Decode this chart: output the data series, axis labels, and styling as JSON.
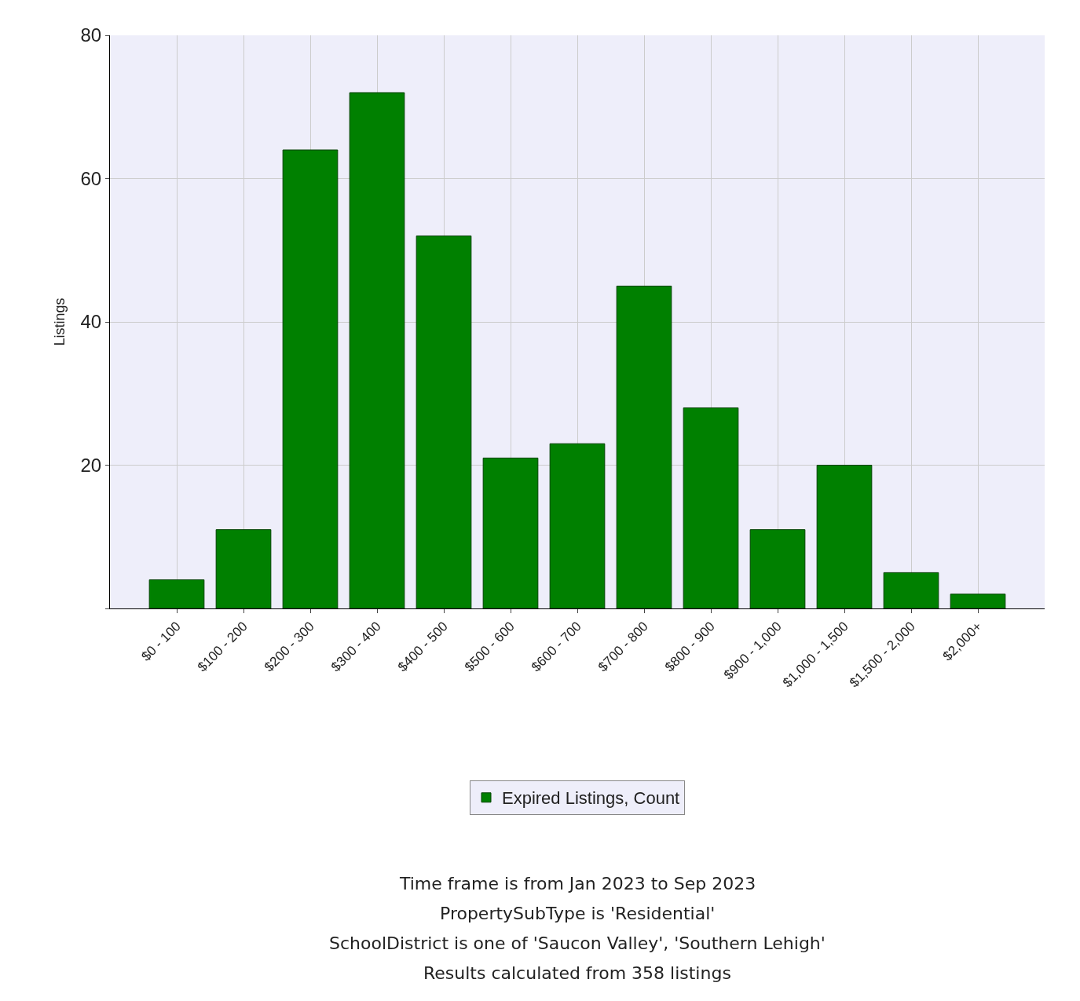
{
  "chart_data": {
    "type": "bar",
    "ylabel": "Listings",
    "categories": [
      "$0 - 100",
      "$100 - 200",
      "$200 - 300",
      "$300 - 400",
      "$400 - 500",
      "$500 - 600",
      "$600 - 700",
      "$700 - 800",
      "$800 - 900",
      "$900 - 1,000",
      "$1,000 - 1,500",
      "$1,500 - 2,000",
      "$2,000+"
    ],
    "series": [
      {
        "name": "Expired Listings, Count",
        "color": "#008000",
        "values": [
          4,
          11,
          64,
          72,
          52,
          21,
          23,
          45,
          28,
          11,
          20,
          5,
          2
        ]
      }
    ],
    "ylim": [
      0,
      80
    ],
    "yticks": [
      {
        "value": 0,
        "label": null
      },
      20,
      40,
      60,
      80
    ],
    "grid": true,
    "legend": "bottom",
    "annotations": [
      "Time frame is from Jan 2023 to Sep 2023",
      "PropertySubType is 'Residential'",
      "SchoolDistrict is one of 'Saucon Valley', 'Southern Lehigh'",
      "Results calculated from 358 listings"
    ]
  }
}
